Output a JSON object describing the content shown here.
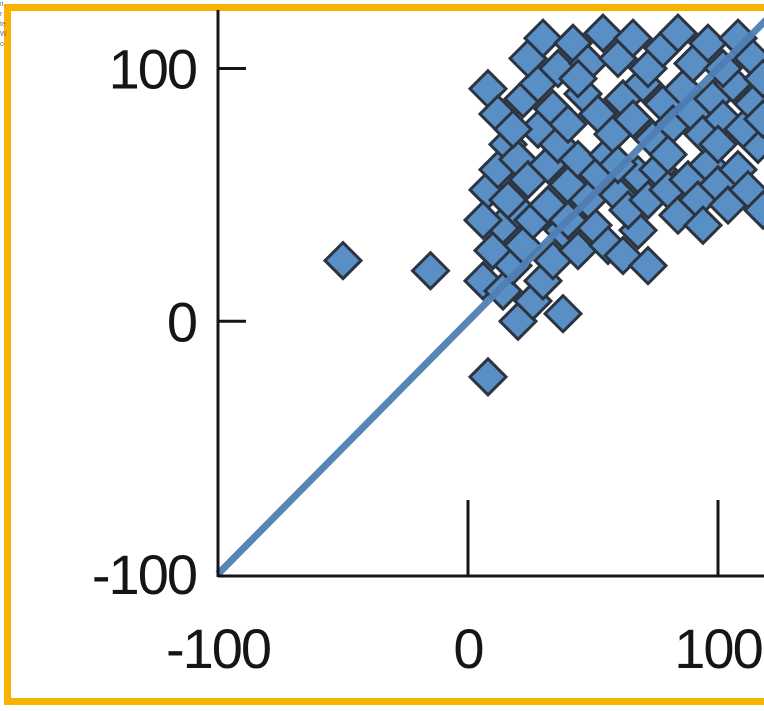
{
  "colors": {
    "frame": "#f6b400",
    "axis": "#151515",
    "marker_fill": "#5a8fc6",
    "marker_stroke": "#2b3440",
    "fit_line": "#4f7fb5"
  },
  "chart_data": {
    "type": "scatter",
    "title": "",
    "xlabel": "",
    "ylabel": "",
    "xlim": [
      -100,
      120
    ],
    "ylim": [
      -100,
      120
    ],
    "xticks": [
      -100,
      0,
      100
    ],
    "yticks": [
      -100,
      0,
      100
    ],
    "xtick_labels": [
      "-100",
      "0",
      "100"
    ],
    "ytick_labels": [
      "-100",
      "0",
      "100"
    ],
    "grid": false,
    "reference_line": {
      "from": [
        -100,
        -100
      ],
      "to": [
        120,
        120
      ],
      "label": ""
    },
    "series": [
      {
        "marker": "diamond",
        "points": [
          [
            -50,
            24
          ],
          [
            -15,
            20
          ],
          [
            8,
            -22
          ],
          [
            20,
            0
          ],
          [
            38,
            3
          ],
          [
            6,
            16
          ],
          [
            10,
            28
          ],
          [
            14,
            12
          ],
          [
            18,
            22
          ],
          [
            22,
            30
          ],
          [
            26,
            8
          ],
          [
            30,
            16
          ],
          [
            34,
            24
          ],
          [
            14,
            38
          ],
          [
            20,
            44
          ],
          [
            26,
            40
          ],
          [
            32,
            46
          ],
          [
            38,
            36
          ],
          [
            44,
            28
          ],
          [
            50,
            38
          ],
          [
            56,
            30
          ],
          [
            62,
            26
          ],
          [
            68,
            36
          ],
          [
            72,
            22
          ],
          [
            8,
            52
          ],
          [
            12,
            60
          ],
          [
            16,
            70
          ],
          [
            20,
            64
          ],
          [
            24,
            56
          ],
          [
            28,
            76
          ],
          [
            32,
            62
          ],
          [
            36,
            70
          ],
          [
            40,
            54
          ],
          [
            44,
            64
          ],
          [
            48,
            48
          ],
          [
            52,
            58
          ],
          [
            56,
            66
          ],
          [
            60,
            50
          ],
          [
            64,
            44
          ],
          [
            68,
            58
          ],
          [
            72,
            48
          ],
          [
            76,
            60
          ],
          [
            80,
            52
          ],
          [
            84,
            42
          ],
          [
            88,
            56
          ],
          [
            92,
            48
          ],
          [
            96,
            62
          ],
          [
            100,
            54
          ],
          [
            104,
            46
          ],
          [
            108,
            60
          ],
          [
            112,
            52
          ],
          [
            116,
            70
          ],
          [
            118,
            44
          ],
          [
            8,
            92
          ],
          [
            12,
            82
          ],
          [
            18,
            76
          ],
          [
            22,
            88
          ],
          [
            28,
            94
          ],
          [
            34,
            84
          ],
          [
            40,
            78
          ],
          [
            46,
            90
          ],
          [
            52,
            82
          ],
          [
            58,
            74
          ],
          [
            62,
            88
          ],
          [
            66,
            80
          ],
          [
            70,
            94
          ],
          [
            74,
            72
          ],
          [
            78,
            86
          ],
          [
            82,
            78
          ],
          [
            86,
            92
          ],
          [
            90,
            82
          ],
          [
            94,
            74
          ],
          [
            98,
            88
          ],
          [
            102,
            80
          ],
          [
            106,
            94
          ],
          [
            110,
            76
          ],
          [
            114,
            86
          ],
          [
            118,
            80
          ],
          [
            24,
            104
          ],
          [
            30,
            112
          ],
          [
            36,
            100
          ],
          [
            42,
            110
          ],
          [
            48,
            102
          ],
          [
            54,
            114
          ],
          [
            60,
            104
          ],
          [
            66,
            112
          ],
          [
            72,
            100
          ],
          [
            78,
            108
          ],
          [
            84,
            114
          ],
          [
            90,
            102
          ],
          [
            96,
            110
          ],
          [
            102,
            100
          ],
          [
            108,
            112
          ],
          [
            114,
            104
          ],
          [
            118,
            96
          ],
          [
            44,
            96
          ],
          [
            100,
            70
          ],
          [
            16,
            48
          ],
          [
            40,
            40
          ],
          [
            60,
            62
          ],
          [
            80,
            66
          ],
          [
            94,
            38
          ],
          [
            6,
            40
          ]
        ]
      }
    ]
  },
  "corner_fragment": [
    "it",
    "r",
    "te",
    "W",
    "o"
  ]
}
